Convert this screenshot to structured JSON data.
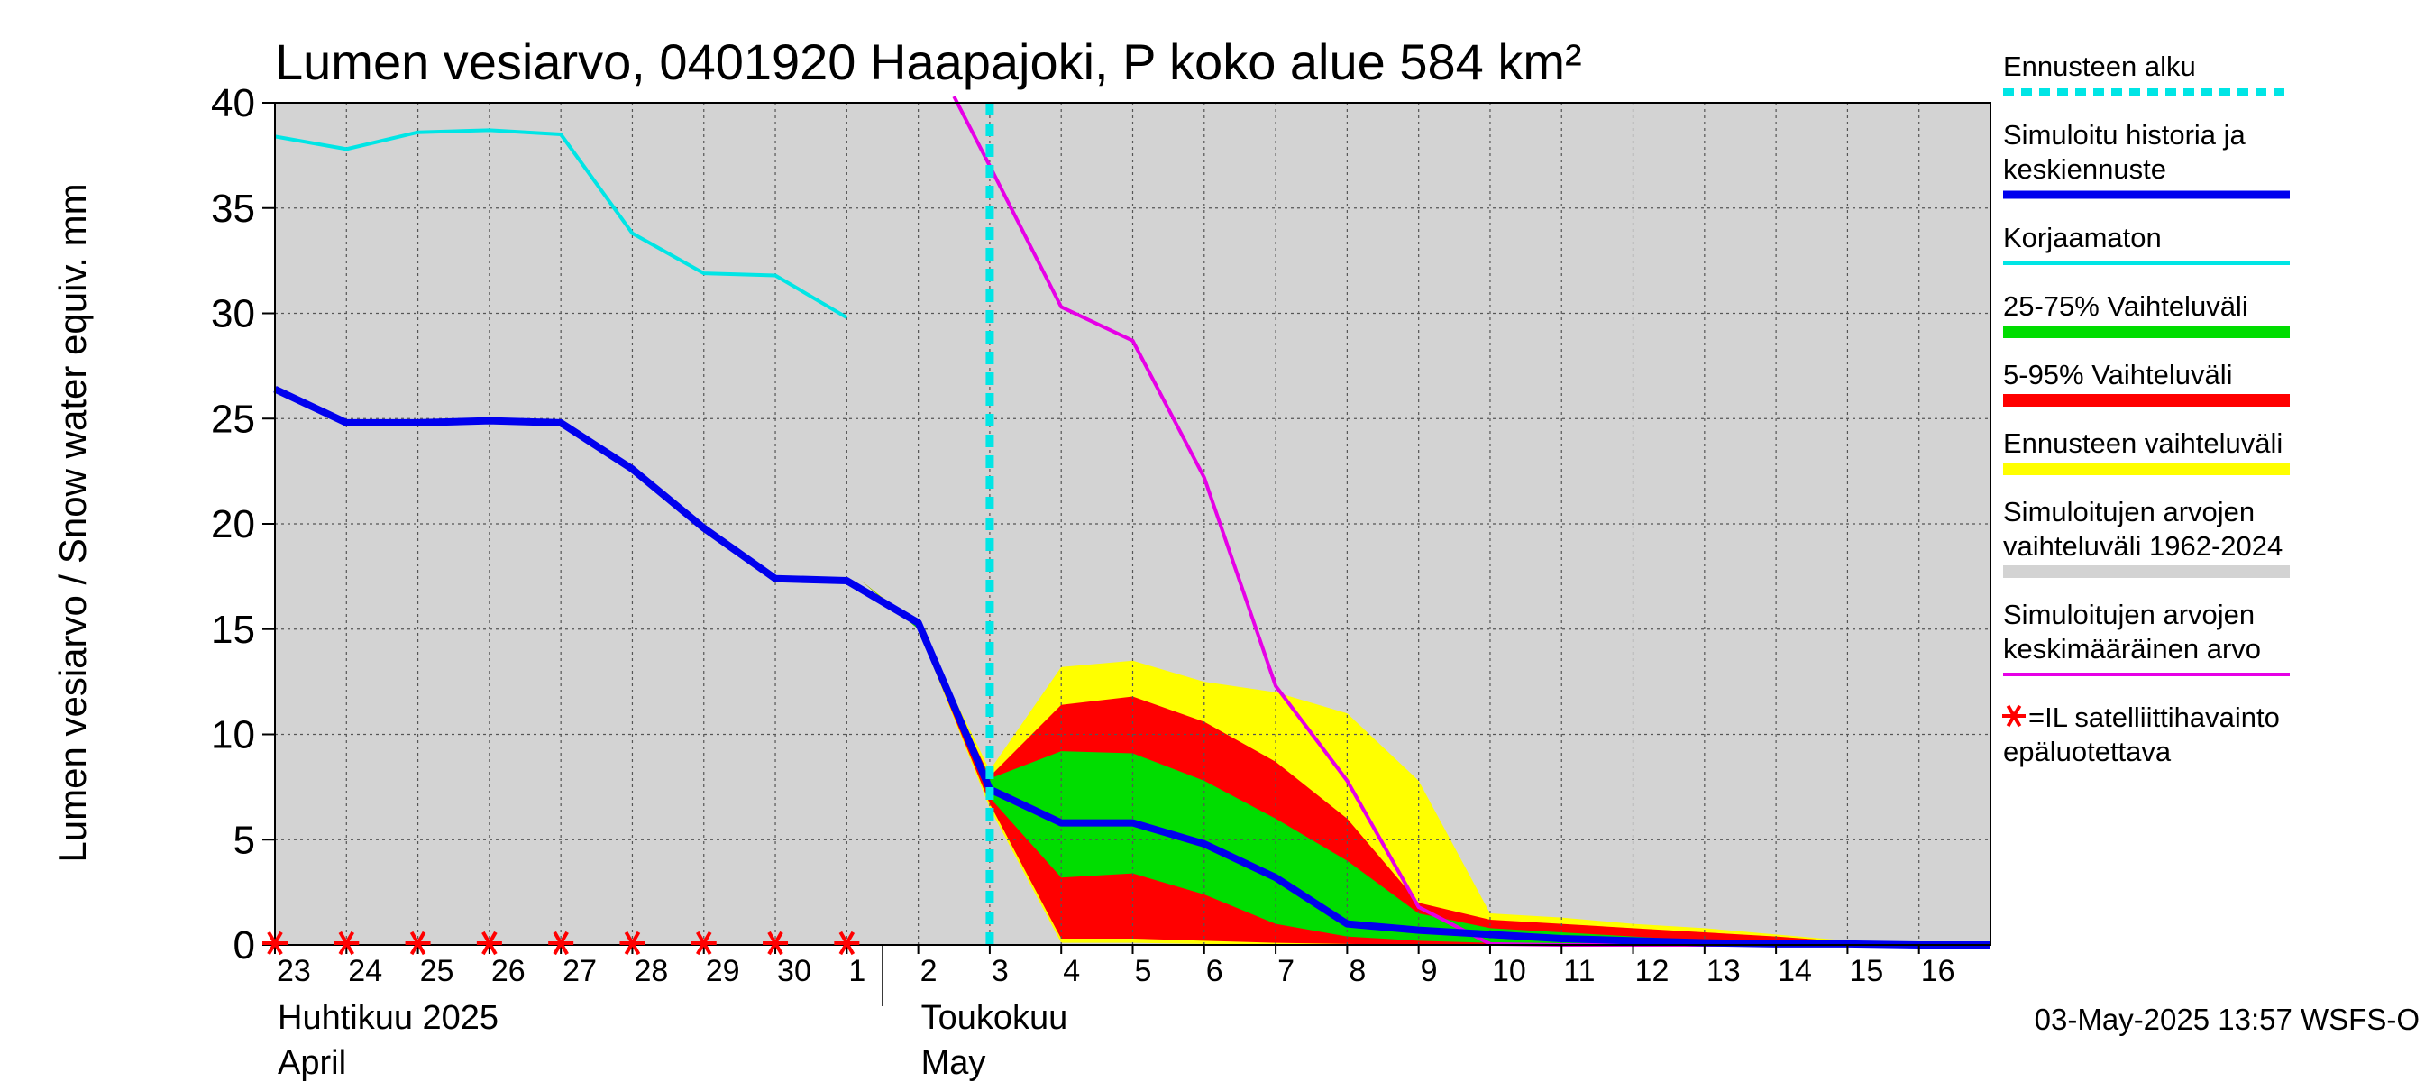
{
  "chart_data": {
    "type": "area",
    "title": "Lumen vesiarvo, 0401920 Haapajoki, P koko alue 584 km²",
    "ylabel": "Lumen vesiarvo / Snow water equiv.    mm",
    "ylim": [
      0,
      40
    ],
    "yticks": [
      0,
      5,
      10,
      15,
      20,
      25,
      30,
      35,
      40
    ],
    "xlim": [
      0,
      24
    ],
    "grid": true,
    "x_tick_labels": [
      "23",
      "24",
      "25",
      "26",
      "27",
      "28",
      "29",
      "30",
      "1",
      "2",
      "3",
      "4",
      "5",
      "6",
      "7",
      "8",
      "9",
      "10",
      "11",
      "12",
      "13",
      "14",
      "15",
      "16"
    ],
    "month_labels": [
      {
        "line1": "Huhtikuu  2025",
        "line2": "April",
        "at": 0
      },
      {
        "line1": "Toukokuu",
        "line2": "May",
        "at": 9
      }
    ],
    "forecast_start_x": 10,
    "series": [
      {
        "name": "Simuloitujen arvojen vaihteluväli 1962-2024",
        "kind": "band",
        "color": "#d3d3d3",
        "x": [
          0,
          24
        ],
        "lower": [
          0,
          0
        ],
        "upper": [
          40,
          40
        ]
      },
      {
        "name": "Ennusteen vaihteluväli",
        "kind": "band",
        "color": "#ffff00",
        "x": [
          8.2,
          9,
          10,
          11,
          12,
          13,
          14,
          15,
          16,
          17,
          18,
          19,
          20,
          21,
          22,
          23,
          24
        ],
        "lower": [
          17.3,
          15,
          6.5,
          0.1,
          0.1,
          0.05,
          0,
          0,
          0,
          0,
          0,
          0,
          0,
          0,
          0,
          0,
          0
        ],
        "upper": [
          17.3,
          15.2,
          8.3,
          13.2,
          13.5,
          12.5,
          12.0,
          11.0,
          7.8,
          1.5,
          1.3,
          1.0,
          0.8,
          0.5,
          0.2,
          0.1,
          0.1
        ]
      },
      {
        "name": "5-95% Vaihteluväli",
        "kind": "band",
        "color": "#ff0000",
        "x": [
          8.2,
          9,
          10,
          11,
          12,
          13,
          14,
          15,
          16,
          17,
          18,
          19,
          20,
          21,
          22,
          23,
          24
        ],
        "lower": [
          17.3,
          15,
          6.7,
          0.3,
          0.3,
          0.2,
          0.1,
          0.05,
          0,
          0,
          0,
          0,
          0,
          0,
          0,
          0,
          0
        ],
        "upper": [
          17.3,
          15.1,
          8.0,
          11.4,
          11.8,
          10.6,
          8.7,
          6.0,
          2.0,
          1.2,
          1.0,
          0.8,
          0.6,
          0.4,
          0.15,
          0.05,
          0.05
        ]
      },
      {
        "name": "25-75% Vaihteluväli",
        "kind": "band",
        "color": "#00dd00",
        "x": [
          8.2,
          9,
          10,
          11,
          12,
          13,
          14,
          15,
          16,
          17,
          18,
          19,
          20,
          21,
          22,
          23,
          24
        ],
        "lower": [
          17.3,
          15,
          7.0,
          3.2,
          3.4,
          2.4,
          1.0,
          0.4,
          0.2,
          0.1,
          0.05,
          0,
          0,
          0,
          0,
          0,
          0
        ],
        "upper": [
          17.3,
          15.1,
          7.9,
          9.2,
          9.1,
          7.8,
          6.0,
          4.0,
          1.5,
          0.8,
          0.6,
          0.4,
          0.2,
          0.1,
          0.05,
          0,
          0
        ]
      },
      {
        "name": "Korjaamaton",
        "kind": "line",
        "color": "#00e5e5",
        "width": 4,
        "x": [
          0,
          1,
          2,
          3,
          4,
          5,
          6,
          7,
          8
        ],
        "y": [
          38.4,
          37.8,
          38.6,
          38.7,
          38.5,
          33.8,
          31.9,
          31.8,
          29.8
        ]
      },
      {
        "name": "Simuloitujen arvojen keskimääräinen arvo",
        "kind": "line",
        "color": "#e600e6",
        "width": 4,
        "x": [
          9.5,
          10,
          11,
          12,
          13,
          14,
          15,
          16,
          17,
          18,
          19,
          20,
          21,
          22,
          23,
          24
        ],
        "y": [
          40.3,
          37.0,
          30.3,
          28.7,
          22.2,
          12.3,
          7.8,
          1.8,
          0.05,
          0,
          0,
          0,
          0,
          0,
          0,
          0
        ]
      },
      {
        "name": "Simuloitu historia ja keskiennuste",
        "kind": "line",
        "color": "#0000ee",
        "width": 8,
        "x": [
          0,
          1,
          2,
          3,
          4,
          5,
          6,
          7,
          8,
          9,
          10,
          11,
          12,
          13,
          14,
          15,
          16,
          17,
          18,
          19,
          20,
          21,
          22,
          23,
          24
        ],
        "y": [
          26.4,
          24.8,
          24.8,
          24.9,
          24.8,
          22.6,
          19.8,
          17.4,
          17.3,
          15.3,
          7.4,
          5.8,
          5.8,
          4.8,
          3.2,
          1.0,
          0.7,
          0.5,
          0.3,
          0.2,
          0.1,
          0.05,
          0.05,
          0,
          0
        ]
      }
    ],
    "satellite_obs_x": [
      0,
      1,
      2,
      3,
      4,
      5,
      6,
      7,
      8
    ],
    "legend": {
      "placement": "right",
      "items": [
        {
          "label_lines": [
            "Ennusteen alku"
          ],
          "color": "#00e5e5",
          "style": "dashed"
        },
        {
          "label_lines": [
            "Simuloitu historia ja",
            "keskiennuste"
          ],
          "color": "#0000ee",
          "style": "thick"
        },
        {
          "label_lines": [
            "Korjaamaton"
          ],
          "color": "#00e5e5",
          "style": "line"
        },
        {
          "label_lines": [
            "25-75% Vaihteluväli"
          ],
          "color": "#00dd00",
          "style": "band"
        },
        {
          "label_lines": [
            "5-95% Vaihteluväli"
          ],
          "color": "#ff0000",
          "style": "band"
        },
        {
          "label_lines": [
            "Ennusteen vaihteluväli"
          ],
          "color": "#ffff00",
          "style": "band"
        },
        {
          "label_lines": [
            "Simuloitujen arvojen",
            "vaihteluväli 1962-2024"
          ],
          "color": "#d3d3d3",
          "style": "band"
        },
        {
          "label_lines": [
            "Simuloitujen arvojen",
            "keskimääräinen arvo"
          ],
          "color": "#e600e6",
          "style": "line"
        },
        {
          "label_lines": [
            "=IL satelliittihavainto",
            "epäluotettava"
          ],
          "color": "#ff0000",
          "style": "star"
        }
      ]
    },
    "footer": "03-May-2025 13:57 WSFS-O"
  }
}
